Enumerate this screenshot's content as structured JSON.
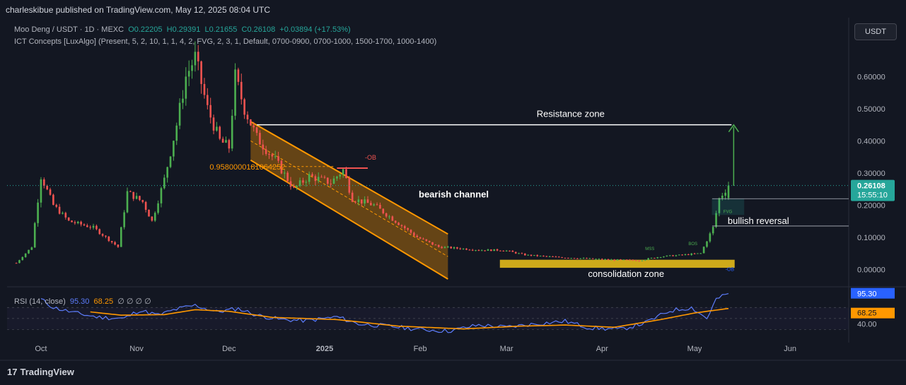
{
  "header": {
    "publisher": "charleskibue published on TradingView.com, May 12, 2025 08:04 UTC"
  },
  "legend": {
    "symbol": "Moo Deng / USDT · 1D · MEXC",
    "open": "O0.22205",
    "high": "H0.29391",
    "low": "L0.21655",
    "close": "C0.26108",
    "change": "+0.03894 (+17.53%)",
    "indicator": "ICT Concepts [LuxAlgo] (Present, 5, 2, 10, 1, 1, 4, 2, FVG, 2, 3, 1, Default, 0700-0900, 0700-1000, 1500-1700, 1000-1400)"
  },
  "toolbar": {
    "currency": "USDT"
  },
  "rsi_legend": {
    "label": "RSI (14, close)",
    "rsi": "95.30",
    "ma": "68.25",
    "dots": "∅ ∅ ∅ ∅"
  },
  "footer": {
    "brand": "TradingView",
    "logo": "17"
  },
  "colors": {
    "up": "#26a69a",
    "up_bright": "#4caf50",
    "down": "#ef5350",
    "channel": "#ff9800",
    "rsi": "#5c7cfa",
    "rsi_ma": "#ff9800",
    "background": "#131722"
  },
  "chart_data": {
    "type": "candlestick",
    "price_axis": {
      "ticks": [
        0.6,
        0.5,
        0.4,
        0.3,
        0.2,
        0.1,
        0.0
      ],
      "tick_labels": [
        "0.60000",
        "0.50000",
        "0.40000",
        "0.30000",
        "0.20000",
        "0.10000",
        "0.00000"
      ],
      "ylim": [
        -0.03,
        0.68
      ]
    },
    "time_axis": {
      "labels": [
        "Oct",
        "Nov",
        "Dec",
        "2025",
        "Feb",
        "Mar",
        "Apr",
        "May",
        "Jun"
      ],
      "dates": [
        "2024-10-01",
        "2024-11-01",
        "2024-12-01",
        "2025-01-01",
        "2025-02-01",
        "2025-03-01",
        "2025-04-01",
        "2025-05-01",
        "2025-06-01"
      ],
      "range": [
        "2024-09-20",
        "2025-06-20"
      ]
    },
    "last_price": {
      "value": 0.26108,
      "label": "0.26108",
      "countdown": "15:55:10"
    },
    "price_keypoints": [
      [
        "2024-09-23",
        0.02
      ],
      [
        "2024-09-28",
        0.07
      ],
      [
        "2024-10-01",
        0.29
      ],
      [
        "2024-10-05",
        0.2
      ],
      [
        "2024-10-10",
        0.15
      ],
      [
        "2024-10-18",
        0.13
      ],
      [
        "2024-10-26",
        0.07
      ],
      [
        "2024-10-29",
        0.24
      ],
      [
        "2024-11-03",
        0.21
      ],
      [
        "2024-11-06",
        0.15
      ],
      [
        "2024-11-10",
        0.28
      ],
      [
        "2024-11-14",
        0.45
      ],
      [
        "2024-11-17",
        0.6
      ],
      [
        "2024-11-20",
        0.66
      ],
      [
        "2024-11-24",
        0.5
      ],
      [
        "2024-11-28",
        0.4
      ],
      [
        "2024-12-01",
        0.38
      ],
      [
        "2024-12-03",
        0.6
      ],
      [
        "2024-12-06",
        0.5
      ],
      [
        "2024-12-10",
        0.41
      ],
      [
        "2024-12-16",
        0.34
      ],
      [
        "2024-12-22",
        0.25
      ],
      [
        "2024-12-27",
        0.29
      ],
      [
        "2025-01-03",
        0.27
      ],
      [
        "2025-01-07",
        0.31
      ],
      [
        "2025-01-10",
        0.22
      ],
      [
        "2025-01-17",
        0.2
      ],
      [
        "2025-01-24",
        0.15
      ],
      [
        "2025-01-31",
        0.1
      ],
      [
        "2025-02-07",
        0.07
      ],
      [
        "2025-02-14",
        0.065
      ],
      [
        "2025-02-21",
        0.06
      ],
      [
        "2025-02-28",
        0.06
      ],
      [
        "2025-03-07",
        0.045
      ],
      [
        "2025-03-14",
        0.04
      ],
      [
        "2025-03-24",
        0.035
      ],
      [
        "2025-04-03",
        0.03
      ],
      [
        "2025-04-13",
        0.028
      ],
      [
        "2025-04-20",
        0.04
      ],
      [
        "2025-04-27",
        0.045
      ],
      [
        "2025-05-03",
        0.05
      ],
      [
        "2025-05-07",
        0.13
      ],
      [
        "2025-05-09",
        0.22
      ],
      [
        "2025-05-12",
        0.26108
      ]
    ],
    "annotations": {
      "resistance": {
        "label": "Resistance zone",
        "price": 0.45,
        "start": "2024-12-10",
        "end": "2025-05-13"
      },
      "channel": {
        "label": "bearish channel",
        "upper": [
          [
            "2024-12-08",
            0.46
          ],
          [
            "2025-02-10",
            0.11
          ]
        ],
        "lower": [
          [
            "2024-12-08",
            0.34
          ],
          [
            "2025-02-10",
            -0.03
          ]
        ]
      },
      "fib_label": {
        "text": "0.9580000181064252",
        "price": 0.32,
        "date": "2024-12-08"
      },
      "order_block": {
        "text": "-OB",
        "price": 0.315,
        "start": "2025-01-05",
        "end": "2025-01-15"
      },
      "consolidation": {
        "label": "consolidation zone",
        "price_top": 0.03,
        "price_bottom": 0.005,
        "start": "2025-02-28",
        "end": "2025-05-14"
      },
      "bullish_reversal": {
        "label": "bullish reversal",
        "price": 0.15
      },
      "arrow": {
        "from": 0.26,
        "to": 0.45,
        "date": "2025-05-13"
      },
      "markers": [
        "MSS",
        "BOS",
        "FVG",
        "-OB"
      ]
    },
    "rsi": {
      "ticks": [
        40
      ],
      "tick_labels": [
        "40.00"
      ],
      "ylim": [
        15,
        100
      ],
      "last_rsi": 95.3,
      "last_ma": 68.25,
      "rsi_keypoints": [
        [
          "2024-10-01",
          85
        ],
        [
          "2024-10-05",
          70
        ],
        [
          "2024-10-12",
          60
        ],
        [
          "2024-10-20",
          52
        ],
        [
          "2024-10-28",
          50
        ],
        [
          "2024-11-02",
          65
        ],
        [
          "2024-11-08",
          56
        ],
        [
          "2024-11-14",
          67
        ],
        [
          "2024-11-20",
          74
        ],
        [
          "2024-11-27",
          62
        ],
        [
          "2024-12-04",
          68
        ],
        [
          "2024-12-10",
          56
        ],
        [
          "2024-12-18",
          48
        ],
        [
          "2024-12-26",
          46
        ],
        [
          "2025-01-05",
          53
        ],
        [
          "2025-01-12",
          40
        ],
        [
          "2025-01-22",
          36
        ],
        [
          "2025-02-01",
          30
        ],
        [
          "2025-02-10",
          27
        ],
        [
          "2025-02-20",
          38
        ],
        [
          "2025-03-01",
          34
        ],
        [
          "2025-03-10",
          40
        ],
        [
          "2025-03-20",
          45
        ],
        [
          "2025-03-28",
          33
        ],
        [
          "2025-04-07",
          30
        ],
        [
          "2025-04-15",
          42
        ],
        [
          "2025-04-23",
          64
        ],
        [
          "2025-04-30",
          70
        ],
        [
          "2025-05-05",
          50
        ],
        [
          "2025-05-08",
          85
        ],
        [
          "2025-05-12",
          95.3
        ]
      ],
      "ma_keypoints": [
        [
          "2024-10-17",
          62
        ],
        [
          "2024-10-27",
          56
        ],
        [
          "2024-11-10",
          57
        ],
        [
          "2024-11-20",
          66
        ],
        [
          "2024-12-01",
          63
        ],
        [
          "2024-12-15",
          52
        ],
        [
          "2025-01-05",
          48
        ],
        [
          "2025-01-25",
          36
        ],
        [
          "2025-02-15",
          31
        ],
        [
          "2025-03-05",
          36
        ],
        [
          "2025-03-20",
          38
        ],
        [
          "2025-04-05",
          34
        ],
        [
          "2025-04-20",
          48
        ],
        [
          "2025-05-01",
          60
        ],
        [
          "2025-05-12",
          68.25
        ]
      ]
    }
  }
}
